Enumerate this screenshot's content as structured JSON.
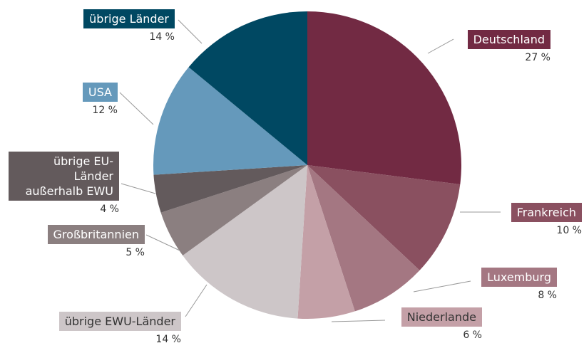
{
  "chart_data": {
    "type": "pie",
    "categories": [
      "Deutschland",
      "Frankreich",
      "Luxemburg",
      "Niederlande",
      "übrige EWU-Länder",
      "Großbritannien",
      "übrige EU-Länder außerhalb EWU",
      "USA",
      "übrige Länder"
    ],
    "values": [
      27,
      10,
      8,
      6,
      14,
      5,
      4,
      12,
      14
    ],
    "value_labels": [
      "27 %",
      "10 %",
      "8 %",
      "6 %",
      "14 %",
      "5 %",
      "4 %",
      "12 %",
      "14 %"
    ],
    "colors": [
      "#722a43",
      "#8a5060",
      "#a47782",
      "#c4a0a7",
      "#cdc6c8",
      "#8b7f80",
      "#635a5c",
      "#6599bb",
      "#004862"
    ]
  }
}
